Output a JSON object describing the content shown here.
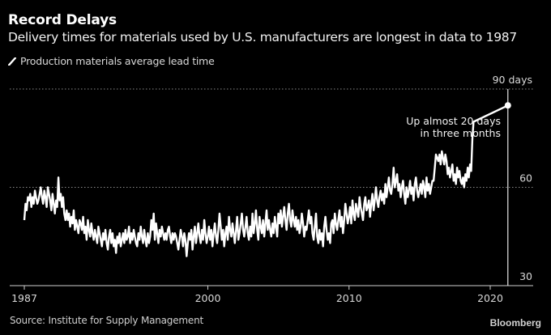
{
  "header": {
    "title": "Record Delays",
    "subtitle": "Delivery times for materials used by U.S. manufacturers are longest in data to 1987"
  },
  "footer": {
    "source": "Source: Institute for Supply Management",
    "brand": "Bloomberg"
  },
  "chart_data": {
    "type": "line",
    "title": "Record Delays",
    "subtitle": "Delivery times for materials used by U.S. manufacturers are longest in data to 1987",
    "xlabel": "",
    "ylabel": "",
    "xlim": [
      1987,
      2022.5
    ],
    "ylim": [
      30,
      90
    ],
    "x_ticks": [
      1987,
      2000,
      2010,
      2020
    ],
    "x_tick_labels": [
      "1987",
      "2000",
      "2010",
      "2020"
    ],
    "y_ticks": [
      30,
      60,
      90
    ],
    "y_tick_labels": [
      "30",
      "60",
      "90 days"
    ],
    "grid": "horizontal dotted at 60 and 90",
    "legend": {
      "position": "top-left",
      "entries": [
        "Production materials average lead time"
      ]
    },
    "annotation": {
      "text_lines": [
        "Up almost 20 days",
        "in three months"
      ],
      "point": {
        "x": 2021.25,
        "y": 85
      }
    },
    "colors": {
      "background": "#000000",
      "line": "#ffffff",
      "grid": "#8a8a8a",
      "axis": "#cfcfcf"
    },
    "series": [
      {
        "name": "Production materials average lead time",
        "x_start": 1987.0,
        "x_step": 0.0833,
        "values": [
          50,
          55,
          53,
          57,
          56,
          58,
          54,
          57,
          55,
          59,
          57,
          55,
          56,
          58,
          60,
          57,
          55,
          59,
          57,
          54,
          60,
          58,
          56,
          53,
          58,
          55,
          52,
          56,
          54,
          63,
          56,
          58,
          54,
          57,
          52,
          50,
          53,
          50,
          52,
          48,
          51,
          49,
          53,
          47,
          50,
          48,
          46,
          50,
          49,
          47,
          51,
          46,
          48,
          44,
          50,
          47,
          45,
          49,
          46,
          44,
          47,
          45,
          43,
          48,
          46,
          44,
          42,
          46,
          44,
          47,
          43,
          41,
          45,
          47,
          43,
          46,
          42,
          44,
          40,
          45,
          43,
          46,
          42,
          44,
          46,
          43,
          47,
          44,
          45,
          48,
          43,
          46,
          44,
          47,
          45,
          43,
          42,
          46,
          44,
          48,
          45,
          43,
          47,
          44,
          42,
          46,
          43,
          45,
          50,
          47,
          52,
          44,
          49,
          46,
          43,
          47,
          45,
          48,
          46,
          44,
          46,
          44,
          47,
          48,
          45,
          43,
          46,
          44,
          46,
          45,
          43,
          41,
          44,
          47,
          45,
          42,
          46,
          44,
          39,
          43,
          46,
          44,
          47,
          41,
          45,
          48,
          43,
          46,
          49,
          45,
          43,
          47,
          44,
          50,
          46,
          43,
          45,
          48,
          44,
          47,
          42,
          46,
          49,
          45,
          43,
          47,
          52,
          48,
          44,
          47,
          42,
          46,
          48,
          44,
          51,
          47,
          45,
          49,
          46,
          43,
          47,
          51,
          44,
          46,
          49,
          52,
          47,
          45,
          48,
          51,
          46,
          44,
          48,
          45,
          52,
          46,
          49,
          53,
          47,
          44,
          51,
          48,
          46,
          50,
          45,
          49,
          53,
          47,
          50,
          47,
          45,
          49,
          46,
          51,
          48,
          45,
          52,
          49,
          53,
          48,
          51,
          54,
          50,
          47,
          52,
          55,
          50,
          48,
          53,
          50,
          48,
          51,
          47,
          50,
          46,
          48,
          52,
          49,
          45,
          48,
          47,
          50,
          53,
          49,
          51,
          46,
          44,
          48,
          52,
          45,
          43,
          47,
          44,
          46,
          42,
          48,
          51,
          47,
          44,
          46,
          43,
          49,
          50,
          46,
          52,
          49,
          47,
          50,
          53,
          48,
          51,
          46,
          50,
          55,
          52,
          49,
          51,
          54,
          49,
          56,
          52,
          50,
          55,
          53,
          51,
          57,
          54,
          52,
          50,
          55,
          57,
          53,
          54,
          56,
          51,
          55,
          58,
          53,
          56,
          60,
          56,
          54,
          57,
          59,
          56,
          58,
          55,
          61,
          57,
          60,
          63,
          59,
          58,
          61,
          66,
          60,
          62,
          64,
          59,
          61,
          57,
          60,
          62,
          58,
          55,
          60,
          57,
          59,
          62,
          58,
          60,
          56,
          61,
          63,
          59,
          57,
          59,
          61,
          58,
          62,
          60,
          57,
          63,
          59,
          61,
          58,
          60,
          62,
          62,
          66,
          70,
          69,
          68,
          70,
          67,
          71,
          69,
          67,
          70,
          68,
          64,
          66,
          63,
          65,
          67,
          62,
          64,
          61,
          66,
          63,
          65,
          62,
          61,
          63,
          60,
          64,
          62,
          66,
          63,
          67,
          65,
          75,
          80,
          85
        ]
      }
    ]
  }
}
